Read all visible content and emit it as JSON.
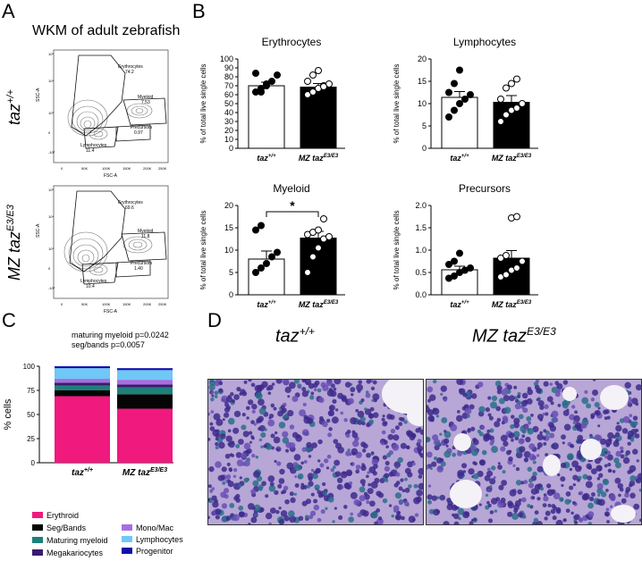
{
  "panels": {
    "a": "A",
    "b": "B",
    "c": "C",
    "d": "D"
  },
  "panel_a": {
    "title": "WKM of adult zebrafish",
    "rows": [
      {
        "geno_main": "taz",
        "geno_sup": "+/+",
        "ssc": "SSC-A",
        "fsc": "FSC-A",
        "gates": [
          {
            "name": "Erythrocytes",
            "value": "74.2"
          },
          {
            "name": "Myeloid",
            "value": "7.53"
          },
          {
            "name": "Precursors",
            "value": "0.97"
          },
          {
            "name": "Lymphocytes",
            "value": "11.4"
          }
        ]
      },
      {
        "geno_main": "MZ taz",
        "geno_sup": "E3/E3",
        "ssc": "SSC-A",
        "fsc": "FSC-A",
        "gates": [
          {
            "name": "Erythrocytes",
            "value": "69.6"
          },
          {
            "name": "Myeloid",
            "value": "11.8"
          },
          {
            "name": "Precursors",
            "value": "1.40"
          },
          {
            "name": "Lymphocytes",
            "value": "10.4"
          }
        ]
      }
    ],
    "x_ticks": [
      "0",
      "50K",
      "100K",
      "150K",
      "200K",
      "250K"
    ],
    "y_ticks": [
      "10⁵",
      "10⁴",
      "10³",
      "0",
      "-10³"
    ]
  },
  "chart_data": [
    {
      "type": "bar",
      "title": "Erythrocytes",
      "ylabel": "% of total live single cells",
      "ylim": [
        0,
        100
      ],
      "yticks": [
        0,
        10,
        20,
        30,
        40,
        50,
        60,
        70,
        80,
        90,
        100
      ],
      "categories": [
        {
          "main": "taz",
          "sup": "+/+"
        },
        {
          "main": "MZ taz",
          "sup": "E3/E3"
        }
      ],
      "values": [
        70,
        68.5
      ],
      "errors": [
        4,
        4
      ],
      "points": [
        [
          63,
          67,
          72,
          75,
          82,
          84,
          63,
          70
        ],
        [
          60,
          63,
          67,
          70,
          72,
          75,
          82,
          87,
          69
        ]
      ]
    },
    {
      "type": "bar",
      "title": "Lymphocytes",
      "ylabel": "% of total live single cells",
      "ylim": [
        0,
        20
      ],
      "yticks": [
        0,
        5,
        10,
        15,
        20
      ],
      "categories": [
        {
          "main": "taz",
          "sup": "+/+"
        },
        {
          "main": "MZ taz",
          "sup": "E3/E3"
        }
      ],
      "values": [
        11.4,
        10.3
      ],
      "errors": [
        1.3,
        1.5
      ],
      "points": [
        [
          7,
          8.5,
          10,
          11,
          12,
          12.5,
          14.5,
          17.5
        ],
        [
          6,
          7.5,
          8.5,
          9,
          10,
          11,
          13.5,
          14.5,
          15.5
        ]
      ]
    },
    {
      "type": "bar",
      "title": "Myeloid",
      "ylabel": "% of total live single cells",
      "ylim": [
        0,
        20
      ],
      "yticks": [
        0,
        5,
        10,
        15,
        20
      ],
      "categories": [
        {
          "main": "taz",
          "sup": "+/+"
        },
        {
          "main": "MZ taz",
          "sup": "E3/E3"
        }
      ],
      "values": [
        8,
        12.7
      ],
      "errors": [
        1.8,
        1.5
      ],
      "significance": "*",
      "points": [
        [
          5,
          6,
          7,
          8.5,
          9.5,
          14.5,
          15.5
        ],
        [
          5,
          8.5,
          10.5,
          12.5,
          13,
          13.5,
          14,
          14.5,
          17
        ]
      ]
    },
    {
      "type": "bar",
      "title": "Precursors",
      "ylabel": "% of total live single cells",
      "ylim": [
        0,
        2
      ],
      "yticks": [
        "0.0",
        "0.5",
        "1.0",
        "1.5",
        "2.0"
      ],
      "categories": [
        {
          "main": "taz",
          "sup": "+/+"
        },
        {
          "main": "MZ taz",
          "sup": "E3/E3"
        }
      ],
      "values": [
        0.56,
        0.82
      ],
      "errors": [
        0.08,
        0.17
      ],
      "points": [
        [
          0.37,
          0.42,
          0.5,
          0.55,
          0.6,
          0.68,
          0.75,
          0.93
        ],
        [
          0.4,
          0.45,
          0.55,
          0.6,
          0.75,
          0.82,
          0.88,
          1.72,
          1.75
        ]
      ]
    },
    {
      "type": "bar",
      "stacked": true,
      "ylabel": "% cells",
      "ylim": [
        0,
        100
      ],
      "yticks": [
        0,
        25,
        50,
        75,
        100
      ],
      "annotation": [
        "maturing myeloid p=0.0242",
        "seg/bands p=0.0057"
      ],
      "categories": [
        {
          "main": "taz",
          "sup": "+/+"
        },
        {
          "main": "MZ taz",
          "sup": "E3/E3"
        }
      ],
      "series": [
        {
          "name": "Erythroid",
          "color": "#f0197d",
          "values": [
            69,
            56
          ]
        },
        {
          "name": "Seg/Bands",
          "color": "#050505",
          "values": [
            6,
            15
          ]
        },
        {
          "name": "Maturing myeloid",
          "color": "#1f7f7a",
          "values": [
            5,
            7
          ]
        },
        {
          "name": "Megakariocytes",
          "color": "#3c1a6e",
          "values": [
            3,
            3
          ]
        },
        {
          "name": "Mono/Mac",
          "color": "#a66fe0",
          "values": [
            4,
            5
          ]
        },
        {
          "name": "Lymphocytes",
          "color": "#6fc8f5",
          "values": [
            11,
            10
          ]
        },
        {
          "name": "Progenitor",
          "color": "#1010aa",
          "values": [
            2,
            2
          ]
        }
      ]
    }
  ],
  "panel_d": {
    "labels": [
      {
        "main": "taz",
        "sup": "+/+"
      },
      {
        "main": "MZ taz",
        "sup": "E3/E3"
      }
    ]
  }
}
